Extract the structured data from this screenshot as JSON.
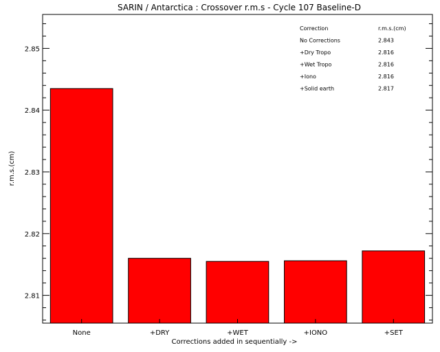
{
  "chart_data": {
    "type": "bar",
    "title": "SARIN / Antarctica : Crossover r.m.s - Cycle 107 Baseline-D",
    "xlabel": "Corrections added in sequentially ->",
    "ylabel": "r.m.s.(cm)",
    "categories": [
      "None",
      "+DRY",
      "+WET",
      "+IONO",
      "+SET"
    ],
    "values": [
      2.8435,
      2.816,
      2.8155,
      2.8156,
      2.8172
    ],
    "ylim": [
      2.8055,
      2.8555
    ],
    "yticks": [
      "2.81",
      "2.82",
      "2.83",
      "2.84",
      "2.85"
    ],
    "bar_color": "#ff0000",
    "grid": false,
    "legend_table": {
      "header": [
        "Correction",
        "r.m.s.(cm)"
      ],
      "rows": [
        [
          "No Corrections",
          "2.843"
        ],
        [
          "+Dry Tropo",
          "2.816"
        ],
        [
          "+Wet Tropo",
          "2.816"
        ],
        [
          "+Iono",
          "2.816"
        ],
        [
          "+Solid earth",
          "2.817"
        ]
      ]
    }
  }
}
